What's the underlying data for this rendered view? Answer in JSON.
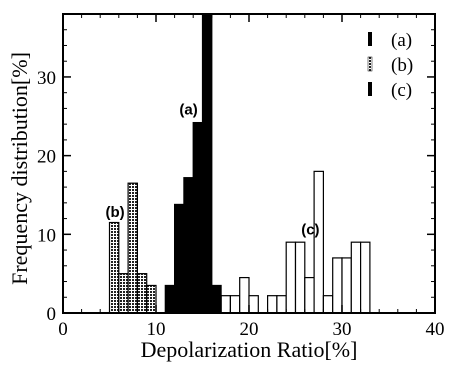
{
  "chart_data": {
    "type": "bar",
    "xlabel": "Depolarization Ratio[%]",
    "ylabel": "Frequency distribution[%]",
    "xlim": [
      0,
      40
    ],
    "ylim": [
      0,
      38
    ],
    "xticks": [
      0,
      10,
      20,
      30,
      40
    ],
    "yticks": [
      0,
      10,
      20,
      30
    ],
    "bin_width": 1,
    "legend_position": "top-right",
    "series": [
      {
        "name": "(a)",
        "fill": "solid",
        "color": "#000000",
        "x": [
          11,
          12,
          13,
          14,
          15,
          16
        ],
        "values": [
          3.5,
          13.8,
          17.2,
          24.2,
          38,
          3.5
        ]
      },
      {
        "name": "(b)",
        "fill": "hatched",
        "color": "#555555",
        "x": [
          5,
          6,
          7,
          8,
          9
        ],
        "values": [
          11.5,
          5,
          16.5,
          5,
          3.5
        ]
      },
      {
        "name": "(c)",
        "fill": "open",
        "color": "#ffffff",
        "x": [
          12,
          13,
          14,
          15,
          16,
          17,
          18,
          19,
          20,
          22,
          23,
          24,
          25,
          26,
          27,
          28,
          29,
          30,
          31,
          32
        ],
        "values": [
          5,
          2.2,
          2.2,
          2.2,
          2.2,
          2.2,
          2.2,
          4.5,
          2.2,
          2.2,
          2.2,
          9,
          9,
          4.5,
          18,
          2.2,
          7,
          7,
          9,
          9
        ]
      }
    ],
    "annotations": [
      {
        "text": "(a)",
        "x": 13.5,
        "y": 25.2
      },
      {
        "text": "(b)",
        "x": 5.6,
        "y": 12.2
      },
      {
        "text": "(c)",
        "x": 26.6,
        "y": 10
      }
    ]
  }
}
